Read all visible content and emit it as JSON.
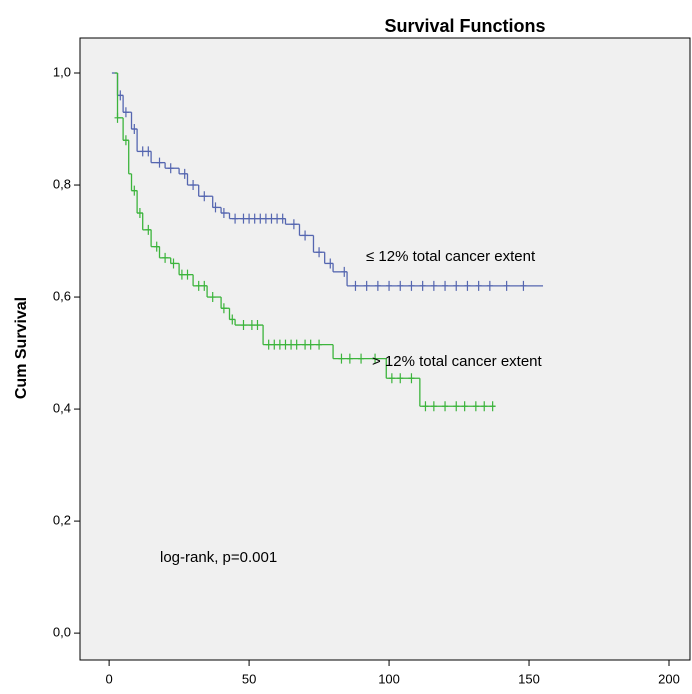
{
  "chart_data": {
    "type": "kaplan-meier",
    "title": "Survival Functions",
    "y_label": "Cum Survival",
    "step": "post",
    "xlim": [
      -10.4,
      207.5
    ],
    "ylim": [
      -0.048,
      1.0625
    ],
    "xticks": [
      0,
      50,
      100,
      150,
      200
    ],
    "yticks": [
      {
        "value": 0,
        "label": "0,0"
      },
      {
        "value": 0.2,
        "label": "0,2"
      },
      {
        "value": 0.4,
        "label": "0,4"
      },
      {
        "value": 0.6,
        "label": "0,6"
      },
      {
        "value": 0.8,
        "label": "0,8"
      },
      {
        "value": 1,
        "label": "1,0"
      }
    ],
    "series": [
      {
        "name": "≤ 12% total cancer extent",
        "color": "#5566b0",
        "x": [
          1,
          3,
          5,
          8,
          10,
          15,
          20,
          25,
          28,
          32,
          37,
          40,
          43,
          63,
          68,
          73,
          77,
          80,
          85,
          155
        ],
        "values": [
          1.0,
          0.96,
          0.93,
          0.9,
          0.86,
          0.84,
          0.83,
          0.82,
          0.8,
          0.78,
          0.76,
          0.75,
          0.74,
          0.73,
          0.71,
          0.68,
          0.66,
          0.645,
          0.62,
          0.62
        ],
        "censored": [
          4,
          6,
          9,
          12,
          14,
          18,
          22,
          27,
          30,
          34,
          38,
          41,
          45,
          48,
          50,
          52,
          54,
          56,
          58,
          60,
          62,
          66,
          70,
          75,
          79,
          84,
          88,
          92,
          96,
          100,
          104,
          108,
          112,
          116,
          120,
          124,
          128,
          132,
          136,
          142,
          148
        ]
      },
      {
        "name": "> 12% total cancer extent",
        "color": "#3cb43c",
        "x": [
          2,
          3,
          5,
          7,
          8,
          10,
          12,
          15,
          18,
          22,
          25,
          30,
          35,
          40,
          43,
          45,
          55,
          80,
          99,
          111,
          138
        ],
        "values": [
          1.0,
          0.92,
          0.88,
          0.82,
          0.79,
          0.75,
          0.72,
          0.69,
          0.67,
          0.66,
          0.64,
          0.62,
          0.6,
          0.58,
          0.56,
          0.55,
          0.515,
          0.49,
          0.455,
          0.405,
          0.405
        ],
        "censored": [
          3,
          6,
          9,
          11,
          14,
          17,
          20,
          23,
          26,
          28,
          32,
          34,
          37,
          41,
          44,
          48,
          51,
          53,
          57,
          59,
          61,
          63,
          65,
          67,
          70,
          72,
          75,
          83,
          86,
          90,
          95,
          101,
          104,
          108,
          113,
          116,
          120,
          124,
          127,
          131,
          134,
          137
        ]
      }
    ],
    "annotation": "log-rank, p=0.001"
  }
}
